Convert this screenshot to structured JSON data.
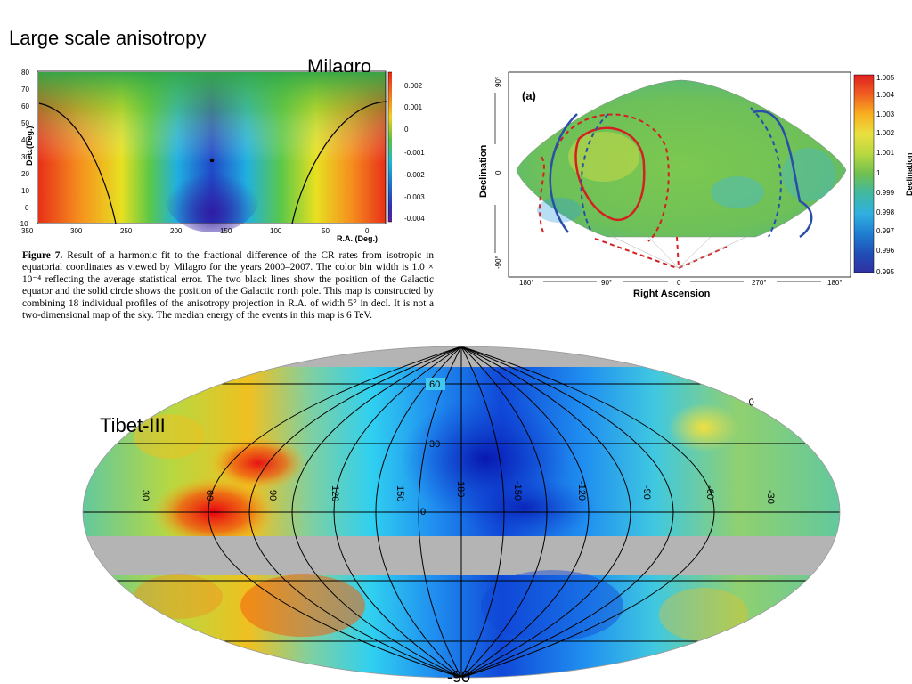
{
  "slide": {
    "title": "Large scale anisotropy",
    "milagro_label": "Milagro",
    "tibet_label": "Tibet-III"
  },
  "milagro_map": {
    "y_axis_label": "Dec.(Deg.)",
    "x_axis_label": "R.A. (Deg.)",
    "y_ticks": [
      "80",
      "70",
      "60",
      "50",
      "40",
      "30",
      "20",
      "10",
      "0",
      "-10"
    ],
    "x_ticks": [
      "350",
      "300",
      "250",
      "200",
      "150",
      "100",
      "50",
      "0"
    ],
    "colorbar_ticks": [
      "0.002",
      "0.001",
      "0",
      "-0.001",
      "-0.002",
      "-0.003",
      "-0.004"
    ]
  },
  "caption": {
    "lead": "Figure 7.",
    "text": " Result of a harmonic fit to the fractional difference of the CR rates from isotropic in equatorial coordinates as viewed by Milagro for the years 2000–2007. The color bin width is 1.0 × 10⁻⁴ reflecting the average statistical error. The two black lines show the position of the Galactic equator and the solid circle shows the position of the Galactic north pole. This map is constructed by combining 18 individual profiles of the anisotropy projection in R.A. of width 5° in decl. It is not a two-dimensional map of the sky. The median energy of the events in this map is 6 TeV."
  },
  "panel_a": {
    "panel_label": "(a)",
    "y_axis_label": "Declination",
    "x_axis_label": "Right Ascension",
    "dec_top": "90°",
    "dec_mid": "0",
    "dec_bottom": "-90°",
    "ra_ticks": [
      "180°",
      "90°",
      "0",
      "270°",
      "180°"
    ],
    "colorbar_ticks": [
      "1.005",
      "1.004",
      "1.003",
      "1.002",
      "1.001",
      "1",
      "0.999",
      "0.998",
      "0.997",
      "0.996",
      "0.995"
    ],
    "colorbar_title": "Declination"
  },
  "tibet_map": {
    "lat_labels": [
      "60",
      "30",
      "0"
    ],
    "lon_labels": [
      "30",
      "60",
      "90",
      "120",
      "150",
      "180",
      "-150",
      "-120",
      "-90",
      "-60",
      "-30"
    ],
    "top_right_label": "0",
    "bottom_label": "-90"
  },
  "colors": {
    "gray_band": "#b4b4b4",
    "red_curve": "#d42020",
    "blue_curve": "#2a4ea8"
  }
}
